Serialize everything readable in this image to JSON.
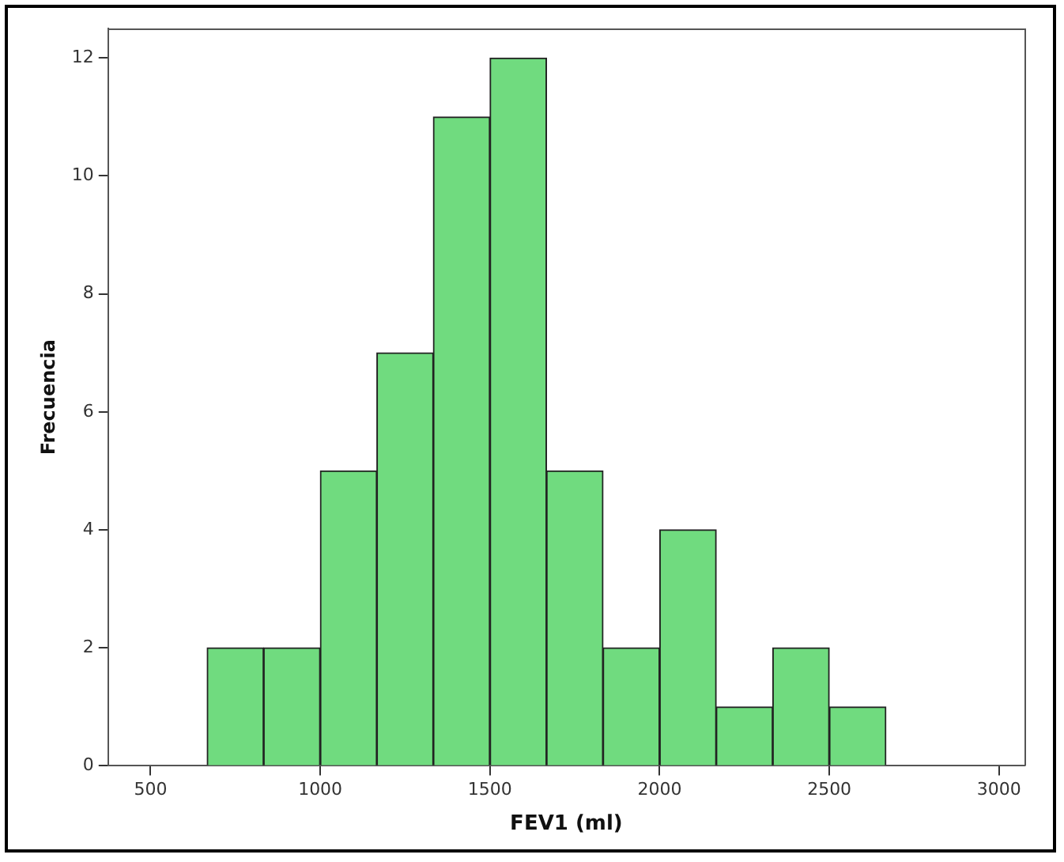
{
  "chart_data": {
    "type": "histogram",
    "xlabel": "FEV1 (ml)",
    "ylabel": "Frecuencia",
    "bins": [
      667,
      833,
      1000,
      1167,
      1333,
      1500,
      1667,
      1833,
      2000,
      2167,
      2333,
      2500,
      2667
    ],
    "values": [
      2,
      2,
      5,
      7,
      11,
      12,
      5,
      2,
      4,
      1,
      2,
      1
    ],
    "color": "#70db7f",
    "xlim": [
      375,
      3075
    ],
    "xticks": [
      500,
      1000,
      1500,
      2000,
      2500,
      3000
    ],
    "ylim": [
      0,
      12.5
    ],
    "yticks": [
      0,
      2,
      4,
      6,
      8,
      10,
      12
    ],
    "grid": false,
    "legend": false
  }
}
